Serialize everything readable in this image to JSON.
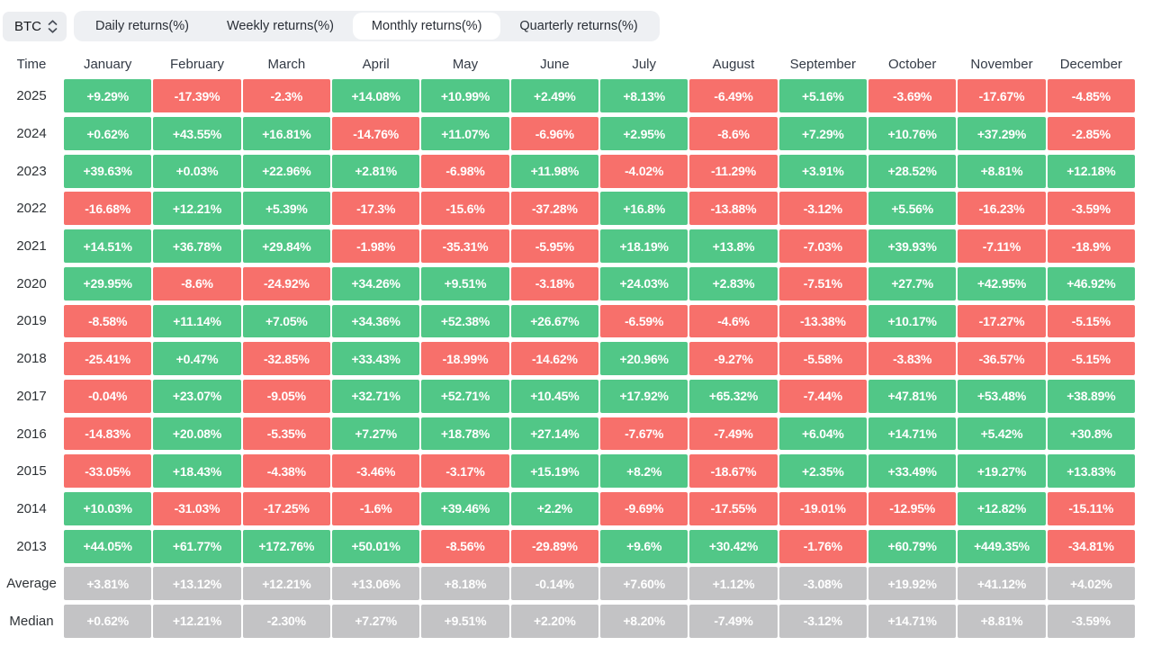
{
  "asset_selector": {
    "label": "BTC",
    "icon": "updown-chevron-icon"
  },
  "tabs": [
    {
      "label": "Daily returns(%)",
      "active": false
    },
    {
      "label": "Weekly returns(%)",
      "active": false
    },
    {
      "label": "Monthly returns(%)",
      "active": true
    },
    {
      "label": "Quarterly returns(%)",
      "active": false
    }
  ],
  "colors": {
    "positive": "#51c787",
    "negative": "#f7706b",
    "summary": "#c3c3c5"
  },
  "chart_data": {
    "type": "heatmap",
    "title": "Monthly returns(%)",
    "asset": "BTC",
    "columns": [
      "Time",
      "January",
      "February",
      "March",
      "April",
      "May",
      "June",
      "July",
      "August",
      "September",
      "October",
      "November",
      "December"
    ],
    "rows": [
      {
        "label": "2025",
        "type": "year",
        "values": [
          "+9.29%",
          "-17.39%",
          "-2.3%",
          "+14.08%",
          "+10.99%",
          "+2.49%",
          "+8.13%",
          "-6.49%",
          "+5.16%",
          "-3.69%",
          "-17.67%",
          "-4.85%"
        ]
      },
      {
        "label": "2024",
        "type": "year",
        "values": [
          "+0.62%",
          "+43.55%",
          "+16.81%",
          "-14.76%",
          "+11.07%",
          "-6.96%",
          "+2.95%",
          "-8.6%",
          "+7.29%",
          "+10.76%",
          "+37.29%",
          "-2.85%"
        ]
      },
      {
        "label": "2023",
        "type": "year",
        "values": [
          "+39.63%",
          "+0.03%",
          "+22.96%",
          "+2.81%",
          "-6.98%",
          "+11.98%",
          "-4.02%",
          "-11.29%",
          "+3.91%",
          "+28.52%",
          "+8.81%",
          "+12.18%"
        ]
      },
      {
        "label": "2022",
        "type": "year",
        "values": [
          "-16.68%",
          "+12.21%",
          "+5.39%",
          "-17.3%",
          "-15.6%",
          "-37.28%",
          "+16.8%",
          "-13.88%",
          "-3.12%",
          "+5.56%",
          "-16.23%",
          "-3.59%"
        ]
      },
      {
        "label": "2021",
        "type": "year",
        "values": [
          "+14.51%",
          "+36.78%",
          "+29.84%",
          "-1.98%",
          "-35.31%",
          "-5.95%",
          "+18.19%",
          "+13.8%",
          "-7.03%",
          "+39.93%",
          "-7.11%",
          "-18.9%"
        ]
      },
      {
        "label": "2020",
        "type": "year",
        "values": [
          "+29.95%",
          "-8.6%",
          "-24.92%",
          "+34.26%",
          "+9.51%",
          "-3.18%",
          "+24.03%",
          "+2.83%",
          "-7.51%",
          "+27.7%",
          "+42.95%",
          "+46.92%"
        ]
      },
      {
        "label": "2019",
        "type": "year",
        "values": [
          "-8.58%",
          "+11.14%",
          "+7.05%",
          "+34.36%",
          "+52.38%",
          "+26.67%",
          "-6.59%",
          "-4.6%",
          "-13.38%",
          "+10.17%",
          "-17.27%",
          "-5.15%"
        ]
      },
      {
        "label": "2018",
        "type": "year",
        "values": [
          "-25.41%",
          "+0.47%",
          "-32.85%",
          "+33.43%",
          "-18.99%",
          "-14.62%",
          "+20.96%",
          "-9.27%",
          "-5.58%",
          "-3.83%",
          "-36.57%",
          "-5.15%"
        ]
      },
      {
        "label": "2017",
        "type": "year",
        "values": [
          "-0.04%",
          "+23.07%",
          "-9.05%",
          "+32.71%",
          "+52.71%",
          "+10.45%",
          "+17.92%",
          "+65.32%",
          "-7.44%",
          "+47.81%",
          "+53.48%",
          "+38.89%"
        ]
      },
      {
        "label": "2016",
        "type": "year",
        "values": [
          "-14.83%",
          "+20.08%",
          "-5.35%",
          "+7.27%",
          "+18.78%",
          "+27.14%",
          "-7.67%",
          "-7.49%",
          "+6.04%",
          "+14.71%",
          "+5.42%",
          "+30.8%"
        ]
      },
      {
        "label": "2015",
        "type": "year",
        "values": [
          "-33.05%",
          "+18.43%",
          "-4.38%",
          "-3.46%",
          "-3.17%",
          "+15.19%",
          "+8.2%",
          "-18.67%",
          "+2.35%",
          "+33.49%",
          "+19.27%",
          "+13.83%"
        ]
      },
      {
        "label": "2014",
        "type": "year",
        "values": [
          "+10.03%",
          "-31.03%",
          "-17.25%",
          "-1.6%",
          "+39.46%",
          "+2.2%",
          "-9.69%",
          "-17.55%",
          "-19.01%",
          "-12.95%",
          "+12.82%",
          "-15.11%"
        ]
      },
      {
        "label": "2013",
        "type": "year",
        "values": [
          "+44.05%",
          "+61.77%",
          "+172.76%",
          "+50.01%",
          "-8.56%",
          "-29.89%",
          "+9.6%",
          "+30.42%",
          "-1.76%",
          "+60.79%",
          "+449.35%",
          "-34.81%"
        ]
      },
      {
        "label": "Average",
        "type": "summary",
        "values": [
          "+3.81%",
          "+13.12%",
          "+12.21%",
          "+13.06%",
          "+8.18%",
          "-0.14%",
          "+7.60%",
          "+1.12%",
          "-3.08%",
          "+19.92%",
          "+41.12%",
          "+4.02%"
        ]
      },
      {
        "label": "Median",
        "type": "summary",
        "values": [
          "+0.62%",
          "+12.21%",
          "-2.30%",
          "+7.27%",
          "+9.51%",
          "+2.20%",
          "+8.20%",
          "-7.49%",
          "-3.12%",
          "+14.71%",
          "+8.81%",
          "-3.59%"
        ]
      }
    ]
  }
}
